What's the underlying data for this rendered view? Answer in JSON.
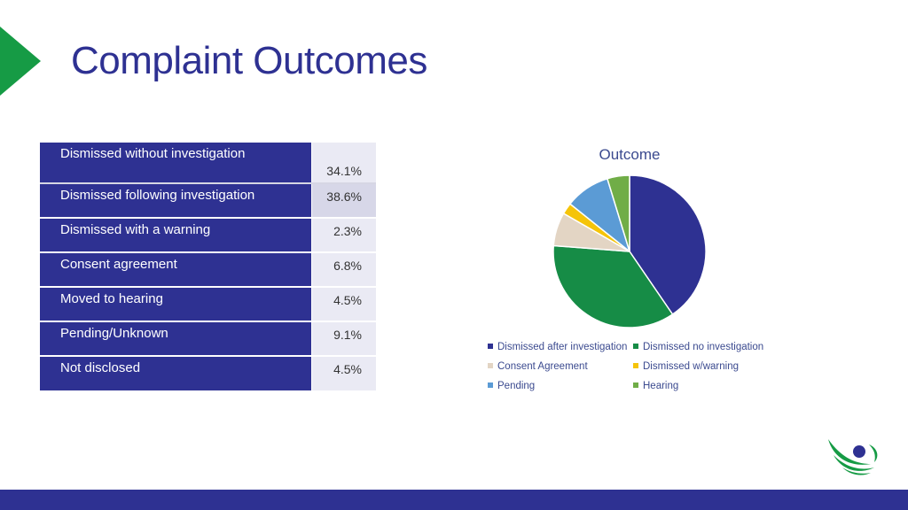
{
  "slide": {
    "title": "Complaint Outcomes",
    "accent_color": "#169b45",
    "primary_color": "#2e3192"
  },
  "table": {
    "rows": [
      {
        "label": "Dismissed without investigation",
        "value": "34.1%"
      },
      {
        "label": "Dismissed following investigation",
        "value": "38.6%"
      },
      {
        "label": "Dismissed with a warning",
        "value": "2.3%"
      },
      {
        "label": "Consent agreement",
        "value": "6.8%"
      },
      {
        "label": "Moved to hearing",
        "value": "4.5%"
      },
      {
        "label": "Pending/Unknown",
        "value": "9.1%"
      },
      {
        "label": "Not disclosed",
        "value": "4.5%"
      }
    ]
  },
  "chart_data": {
    "type": "pie",
    "title": "Outcome",
    "legend_position": "bottom",
    "slices": [
      {
        "name": "Dismissed after investigation",
        "value": 38.6,
        "color": "#2e3192"
      },
      {
        "name": "Dismissed no investigation",
        "value": 34.1,
        "color": "#168c46"
      },
      {
        "name": "Consent Agreement",
        "value": 6.8,
        "color": "#e3d5c4"
      },
      {
        "name": "Dismissed w/warning",
        "value": 2.3,
        "color": "#f5c40a"
      },
      {
        "name": "Pending",
        "value": 9.1,
        "color": "#5b9bd5"
      },
      {
        "name": "Hearing",
        "value": 4.5,
        "color": "#70ad47"
      }
    ],
    "draw_order": [
      "Dismissed after investigation",
      "Dismissed no investigation",
      "Consent Agreement",
      "Dismissed w/warning",
      "Pending",
      "Hearing"
    ]
  },
  "logo": {
    "icon": "organization-logo-icon"
  }
}
